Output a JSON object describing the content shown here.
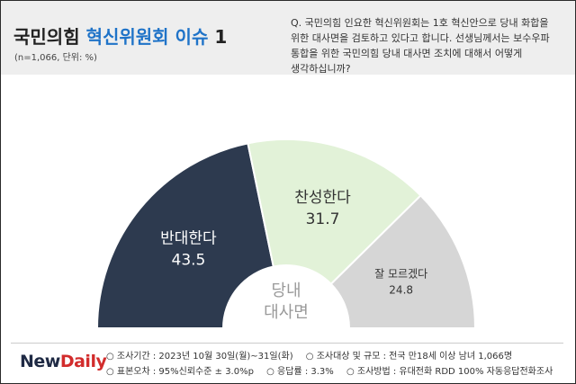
{
  "header": {
    "title_prefix": "국민의힘",
    "title_accent": "혁신위원회 이슈",
    "title_number": "1",
    "sample": "(n=1,066, 단위: %)",
    "question": "Q. 국민의힘 인요한 혁신위원회는 1호 혁신안으로 당내 화합을 위한 대사면을 검토하고 있다고 합니다. 선생님께서는 보수우파 통합을 위한 국민의힘 당내 대사면 조치에 대해서 어떻게 생각하십니까?"
  },
  "chart_data": {
    "type": "pie",
    "style": "semi-donut",
    "center_label": [
      "당내",
      "대사면"
    ],
    "slices": [
      {
        "label": "반대한다",
        "value": 43.5,
        "value_label": "43.5",
        "color": "#2d3a4f"
      },
      {
        "label": "찬성한다",
        "value": 31.7,
        "value_label": "31.7",
        "color": "#e2f2d8"
      },
      {
        "label": "잘 모르겠다",
        "value": 24.8,
        "value_label": "24.8",
        "color": "#d6d6d6"
      }
    ]
  },
  "footer": {
    "logo_new": "New",
    "logo_daily": "Daily",
    "meta_row1": [
      "○ 조사기간 : 2023년 10월 30일(월)~31일(화)",
      "○ 조사대상 및 규모 : 전국 만18세 이상 남녀  1,066명"
    ],
    "meta_row2": [
      "○ 표본오차 : 95%신뢰수준 ± 3.0%p",
      "○ 응답률 : 3.3%",
      "○ 조사방법 : 유대전화 RDD 100% 자동응답전화조사"
    ]
  }
}
